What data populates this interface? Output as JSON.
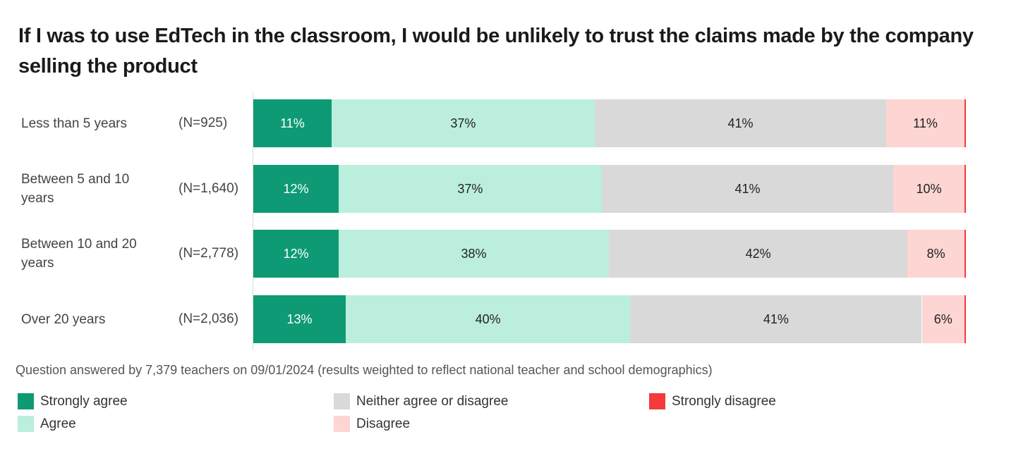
{
  "chart_data": {
    "type": "bar",
    "orientation": "horizontal",
    "stacked": true,
    "title": "If I was to use EdTech in the classroom, I would be unlikely to trust the claims made by the company selling the product",
    "categories": [
      "Less than 5 years",
      "Between 5 and 10 years",
      "Between 10 and 20 years",
      "Over 20 years"
    ],
    "sample_sizes": [
      "(N=925)",
      "(N=1,640)",
      "(N=2,778)",
      "(N=2,036)"
    ],
    "series": [
      {
        "name": "Strongly agree",
        "color": "#0e9a74",
        "values": [
          11,
          12,
          12,
          13
        ]
      },
      {
        "name": "Agree",
        "color": "#bbeedd",
        "values": [
          37,
          37,
          38,
          40
        ]
      },
      {
        "name": "Neither agree or disagree",
        "color": "#d9d9d9",
        "values": [
          41,
          41,
          42,
          41
        ]
      },
      {
        "name": "Disagree",
        "color": "#fdd5d3",
        "values": [
          11,
          10,
          8,
          6
        ]
      },
      {
        "name": "Strongly disagree",
        "color": "#f43a3a",
        "values": [
          0.2,
          0.2,
          0.2,
          0.2
        ]
      }
    ],
    "xlim": [
      0,
      100
    ],
    "grid": false,
    "legend": "bottom",
    "note": "Question answered by 7,379 teachers on 09/01/2024 (results weighted to reflect national teacher and school demographics)"
  }
}
